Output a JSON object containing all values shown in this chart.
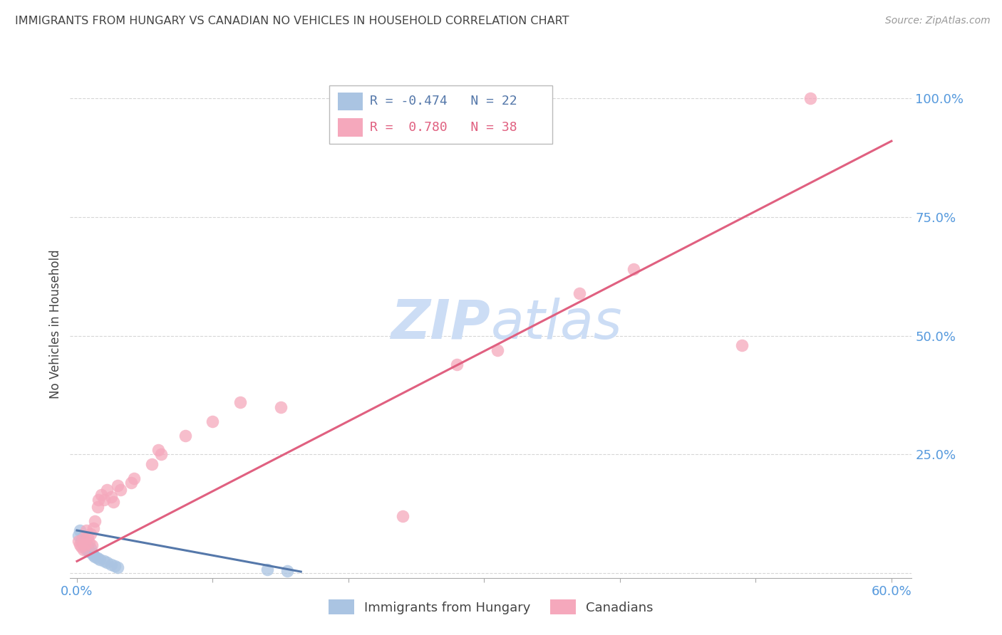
{
  "title": "IMMIGRANTS FROM HUNGARY VS CANADIAN NO VEHICLES IN HOUSEHOLD CORRELATION CHART",
  "source": "Source: ZipAtlas.com",
  "xlabel_blue": "Immigrants from Hungary",
  "xlabel_pink": "Canadians",
  "ylabel": "No Vehicles in Household",
  "xlim": [
    -0.005,
    0.615
  ],
  "ylim": [
    -0.01,
    1.06
  ],
  "xticks": [
    0.0,
    0.1,
    0.2,
    0.3,
    0.4,
    0.5,
    0.6
  ],
  "xticklabels": [
    "0.0%",
    "",
    "",
    "",
    "",
    "",
    "60.0%"
  ],
  "yticks_right": [
    0.0,
    0.25,
    0.5,
    0.75,
    1.0
  ],
  "ytick_labels_right": [
    "",
    "25.0%",
    "50.0%",
    "75.0%",
    "100.0%"
  ],
  "legend_r_blue": "-0.474",
  "legend_n_blue": "22",
  "legend_r_pink": "0.780",
  "legend_n_pink": "38",
  "blue_color": "#aac4e2",
  "pink_color": "#f5a8bc",
  "blue_line_color": "#5578aa",
  "pink_line_color": "#e06080",
  "grid_color": "#cccccc",
  "title_color": "#444444",
  "axis_label_color": "#5599dd",
  "watermark_color": "#ccddf5",
  "blue_dots": [
    [
      0.001,
      0.08
    ],
    [
      0.002,
      0.09
    ],
    [
      0.003,
      0.068
    ],
    [
      0.004,
      0.075
    ],
    [
      0.005,
      0.062
    ],
    [
      0.006,
      0.055
    ],
    [
      0.007,
      0.05
    ],
    [
      0.008,
      0.058
    ],
    [
      0.009,
      0.045
    ],
    [
      0.01,
      0.052
    ],
    [
      0.011,
      0.042
    ],
    [
      0.012,
      0.038
    ],
    [
      0.013,
      0.035
    ],
    [
      0.015,
      0.032
    ],
    [
      0.017,
      0.028
    ],
    [
      0.02,
      0.025
    ],
    [
      0.022,
      0.022
    ],
    [
      0.025,
      0.018
    ],
    [
      0.028,
      0.015
    ],
    [
      0.03,
      0.012
    ],
    [
      0.14,
      0.007
    ],
    [
      0.155,
      0.005
    ]
  ],
  "pink_dots": [
    [
      0.001,
      0.068
    ],
    [
      0.002,
      0.06
    ],
    [
      0.003,
      0.055
    ],
    [
      0.004,
      0.072
    ],
    [
      0.005,
      0.05
    ],
    [
      0.006,
      0.06
    ],
    [
      0.007,
      0.09
    ],
    [
      0.008,
      0.075
    ],
    [
      0.009,
      0.065
    ],
    [
      0.01,
      0.082
    ],
    [
      0.011,
      0.058
    ],
    [
      0.012,
      0.095
    ],
    [
      0.013,
      0.11
    ],
    [
      0.015,
      0.14
    ],
    [
      0.016,
      0.155
    ],
    [
      0.018,
      0.165
    ],
    [
      0.02,
      0.155
    ],
    [
      0.022,
      0.175
    ],
    [
      0.025,
      0.16
    ],
    [
      0.027,
      0.15
    ],
    [
      0.03,
      0.185
    ],
    [
      0.032,
      0.175
    ],
    [
      0.04,
      0.19
    ],
    [
      0.042,
      0.2
    ],
    [
      0.055,
      0.23
    ],
    [
      0.06,
      0.26
    ],
    [
      0.062,
      0.25
    ],
    [
      0.08,
      0.29
    ],
    [
      0.1,
      0.32
    ],
    [
      0.12,
      0.36
    ],
    [
      0.15,
      0.35
    ],
    [
      0.24,
      0.12
    ],
    [
      0.28,
      0.44
    ],
    [
      0.31,
      0.47
    ],
    [
      0.37,
      0.59
    ],
    [
      0.41,
      0.64
    ],
    [
      0.49,
      0.48
    ],
    [
      0.54,
      1.0
    ]
  ],
  "blue_line": [
    [
      0.0,
      0.09
    ],
    [
      0.165,
      0.003
    ]
  ],
  "pink_line": [
    [
      0.0,
      0.025
    ],
    [
      0.6,
      0.91
    ]
  ]
}
